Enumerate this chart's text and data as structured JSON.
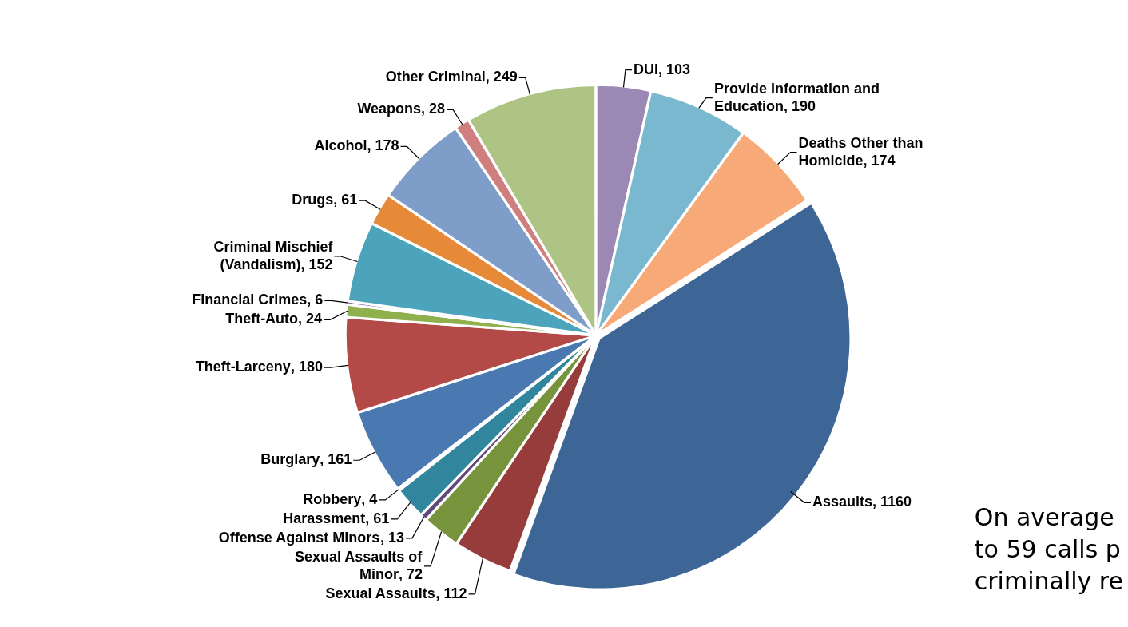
{
  "chart_data": {
    "type": "pie",
    "categories": [
      "DUI",
      "Provide Information and Education",
      "Deaths Other than Homicide",
      "Assaults",
      "Sexual Assaults",
      "Sexual Assaults of Minor",
      "Offense Against Minors",
      "Harassment",
      "Robbery",
      "Burglary",
      "Theft-Larceny",
      "Theft-Auto",
      "Financial Crimes",
      "Criminal Mischief (Vandalism)",
      "Drugs",
      "Alcohol",
      "Weapons",
      "Other Criminal"
    ],
    "values": [
      103,
      190,
      174,
      1160,
      112,
      72,
      13,
      61,
      4,
      161,
      180,
      24,
      6,
      152,
      61,
      178,
      28,
      249
    ],
    "colors": [
      "#9b88b5",
      "#7ab8cf",
      "#f7a977",
      "#3d6595",
      "#963c3a",
      "#77933c",
      "#604a7b",
      "#31859c",
      "#e46c0a",
      "#4a78b0",
      "#b34a47",
      "#8fb04d",
      "#7d5fa0",
      "#4ba4bc",
      "#e68a3a",
      "#7f9dc9",
      "#cf7f7e",
      "#adc484"
    ],
    "value_labels": [
      ", 103",
      ", 190",
      ", 174",
      ", 1160",
      ", 112",
      ", 72",
      ", 13",
      ", 61",
      ", 4",
      ", 161",
      ", 180",
      ", 24",
      ", 6",
      ", 152",
      ", 61",
      ", 178",
      ", 28",
      ", 249"
    ],
    "legend": false,
    "annotations": [
      "On average\nto 59 calls p\ncriminally re"
    ]
  }
}
